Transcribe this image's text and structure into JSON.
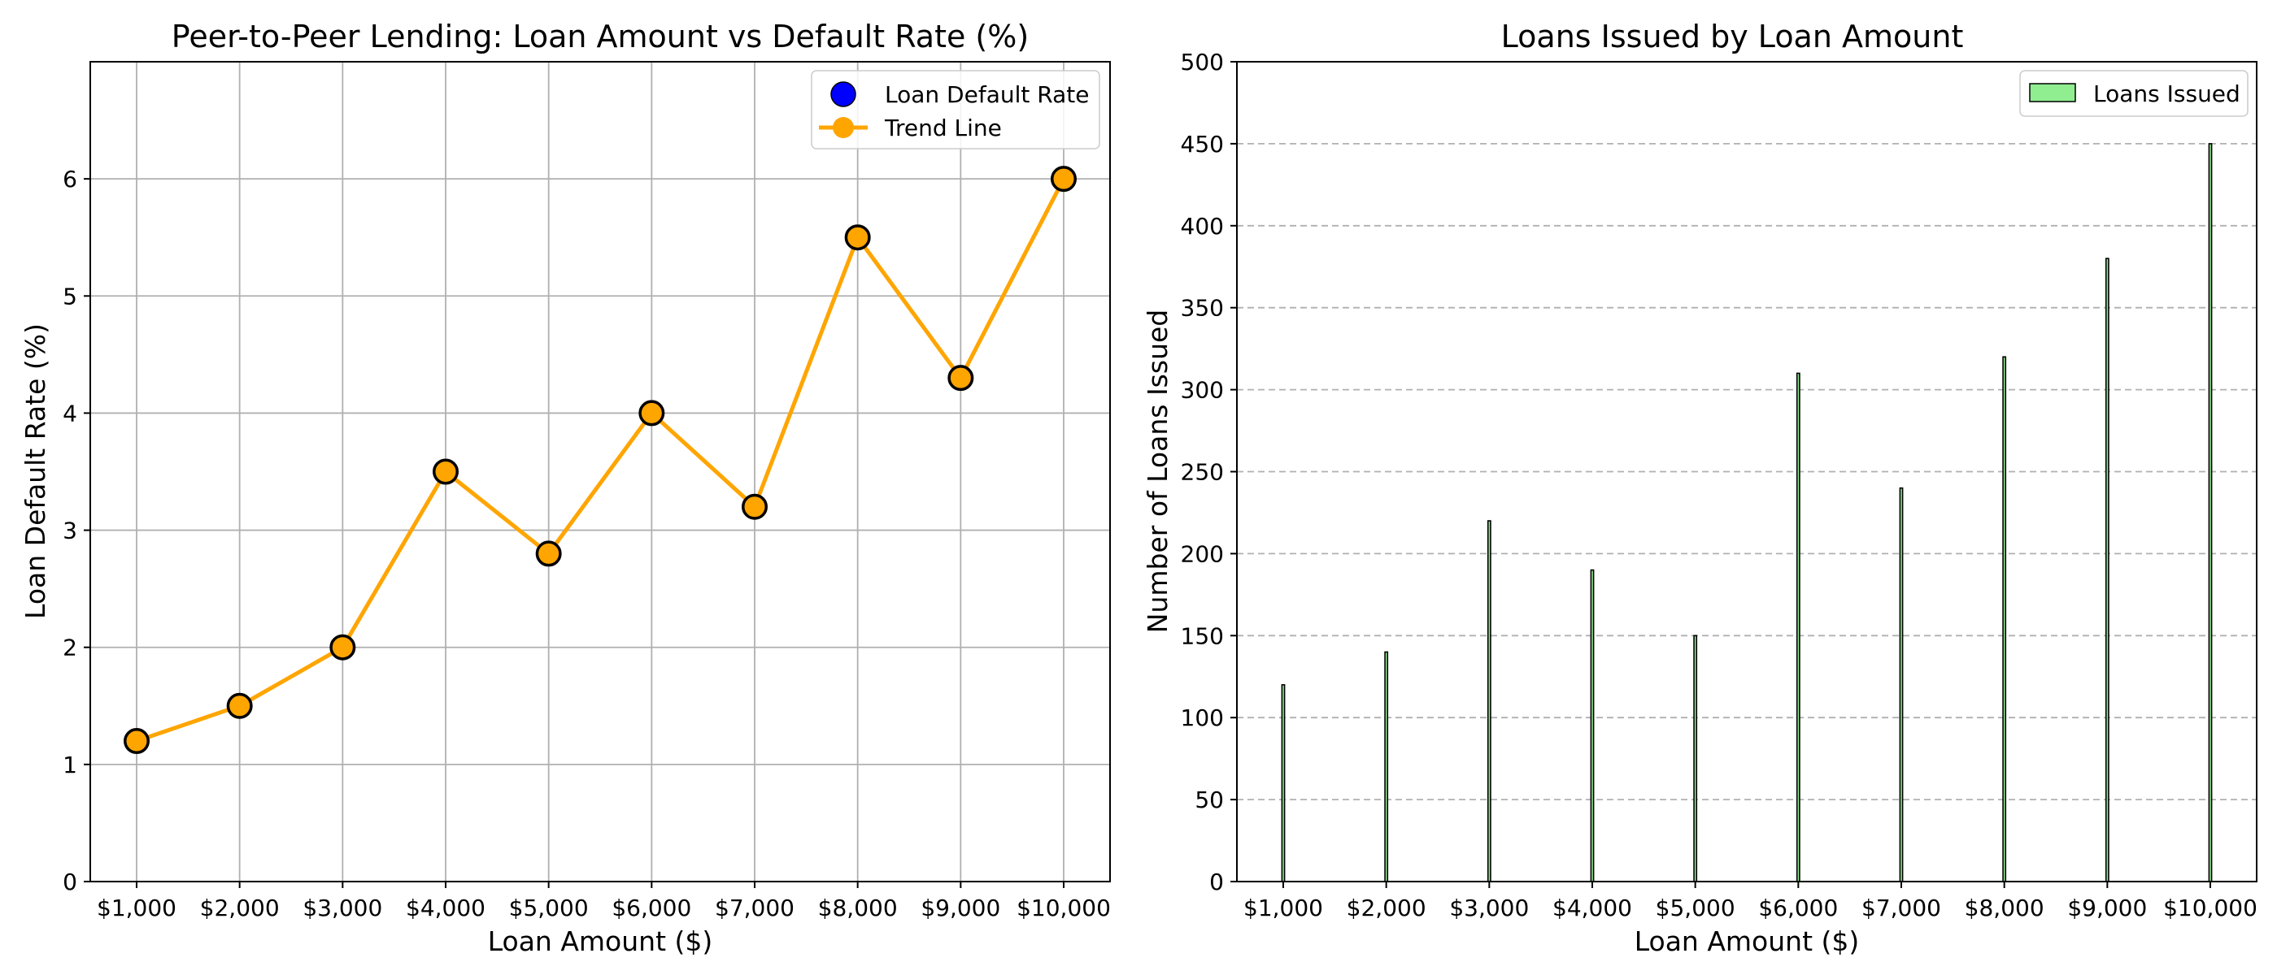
{
  "chart_data": [
    {
      "type": "line",
      "title": "Peer-to-Peer Lending: Loan Amount vs Default Rate (%)",
      "xlabel": "Loan Amount ($)",
      "ylabel": "Loan Default Rate (%)",
      "categories": [
        "$1,000",
        "$2,000",
        "$3,000",
        "$4,000",
        "$5,000",
        "$6,000",
        "$7,000",
        "$8,000",
        "$9,000",
        "$10,000"
      ],
      "x": [
        1000,
        2000,
        3000,
        4000,
        5000,
        6000,
        7000,
        8000,
        9000,
        10000
      ],
      "xlim": [
        550,
        10450
      ],
      "ylim": [
        0,
        7
      ],
      "yticks": [
        0,
        1,
        2,
        3,
        4,
        5,
        6
      ],
      "grid": "both",
      "legend_position": "top-right",
      "series": [
        {
          "name": "Loan Default Rate",
          "kind": "scatter",
          "color": "#0000ff",
          "edge_color": "#000000",
          "values": [
            1.2,
            1.5,
            2.0,
            3.5,
            2.8,
            4.0,
            3.2,
            5.5,
            4.3,
            6.0
          ]
        },
        {
          "name": "Trend Line",
          "kind": "line",
          "color": "#ffa500",
          "values": [
            1.2,
            1.5,
            2.0,
            3.5,
            2.8,
            4.0,
            3.2,
            5.5,
            4.3,
            6.0
          ]
        }
      ]
    },
    {
      "type": "bar",
      "title": "Loans Issued by Loan Amount",
      "xlabel": "Loan Amount ($)",
      "ylabel": "Number of Loans Issued",
      "categories": [
        "$1,000",
        "$2,000",
        "$3,000",
        "$4,000",
        "$5,000",
        "$6,000",
        "$7,000",
        "$8,000",
        "$9,000",
        "$10,000"
      ],
      "x": [
        1000,
        2000,
        3000,
        4000,
        5000,
        6000,
        7000,
        8000,
        9000,
        10000
      ],
      "xlim": [
        550,
        10450
      ],
      "ylim": [
        0,
        500
      ],
      "yticks": [
        0,
        50,
        100,
        150,
        200,
        250,
        300,
        350,
        400,
        450,
        500
      ],
      "grid": "y-dashed",
      "legend_position": "top-right",
      "series": [
        {
          "name": "Loans Issued",
          "color": "#90ee90",
          "edge_color": "#000000",
          "values": [
            120,
            140,
            220,
            190,
            150,
            310,
            240,
            320,
            380,
            450
          ]
        }
      ]
    }
  ]
}
